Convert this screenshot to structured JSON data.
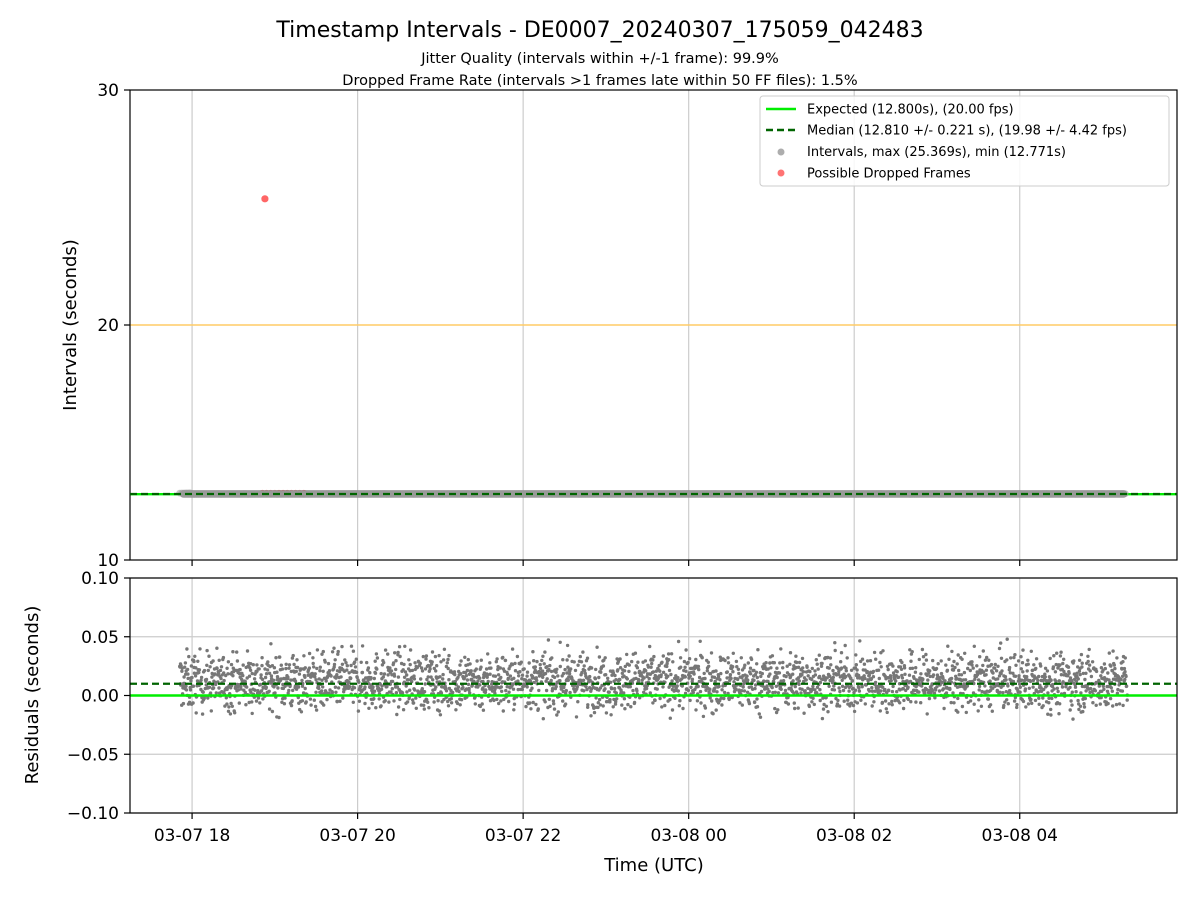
{
  "chart_data": {
    "title": "Timestamp Intervals - DE0007_20240307_175059_042483",
    "subtitle_lines": [
      "Jitter Quality (intervals within +/-1 frame): 99.9%",
      "Dropped Frame Rate (intervals >1 frames late within 50 FF files): 1.5%"
    ],
    "xlabel": "Time (UTC)",
    "x_tick_labels": [
      "03-07 18",
      "03-07 20",
      "03-07 22",
      "03-08 00",
      "03-08 02",
      "03-08 04"
    ],
    "x_range_hours_since_first_tick": [
      -0.75,
      11.9
    ],
    "data_span_hours_since_first_tick": [
      -0.15,
      11.3
    ],
    "top": {
      "type": "scatter",
      "ylabel": "Intervals (seconds)",
      "ylim": [
        10,
        30
      ],
      "y_ticks": [
        "10",
        "20",
        "30"
      ],
      "grid": "vertical",
      "expected_interval": 12.8,
      "median_interval": 12.81,
      "reference_line": 20,
      "interval_max": 25.369,
      "interval_min": 12.771,
      "dropped_points": [
        {
          "x": 0.88,
          "y": 25.369
        },
        {
          "x": 0.85,
          "y": 12.83
        },
        {
          "x": 0.9,
          "y": 12.83
        },
        {
          "x": 0.95,
          "y": 12.83
        },
        {
          "x": 1.0,
          "y": 12.83
        },
        {
          "x": 1.05,
          "y": 12.83
        },
        {
          "x": 1.1,
          "y": 12.83
        },
        {
          "x": 1.15,
          "y": 12.83
        },
        {
          "x": 1.2,
          "y": 12.83
        },
        {
          "x": 1.25,
          "y": 12.83
        },
        {
          "x": 1.3,
          "y": 12.83
        },
        {
          "x": 1.35,
          "y": 12.83
        }
      ],
      "legend_position": "upper-right",
      "legend": [
        {
          "label": "Expected (12.800s), (20.00 fps)",
          "style": "line-solid"
        },
        {
          "label": "Median (12.810 +/- 0.221 s), (19.98 +/- 4.42 fps)",
          "style": "line-dashed"
        },
        {
          "label": "Intervals, max (25.369s), min (12.771s)",
          "style": "marker-gray"
        },
        {
          "label": "Possible Dropped Frames",
          "style": "marker-red"
        }
      ]
    },
    "bottom": {
      "type": "scatter",
      "ylabel": "Residuals (seconds)",
      "ylim": [
        -0.1,
        0.1
      ],
      "y_ticks": [
        "−0.10",
        "−0.05",
        "0.00",
        "0.05",
        "0.10"
      ],
      "grid": "both",
      "expected_residual": 0.0,
      "median_residual": 0.01,
      "residual_center": 0.012,
      "residual_spread": 0.012,
      "residual_range": [
        -0.03,
        0.05
      ],
      "point_count": 3000
    }
  },
  "colors": {
    "expected": "#00ee00",
    "median": "#006400",
    "intervals": "#777777",
    "dropped": "#ff0000",
    "reference": "#ffcc66",
    "grid": "#cccccc"
  }
}
